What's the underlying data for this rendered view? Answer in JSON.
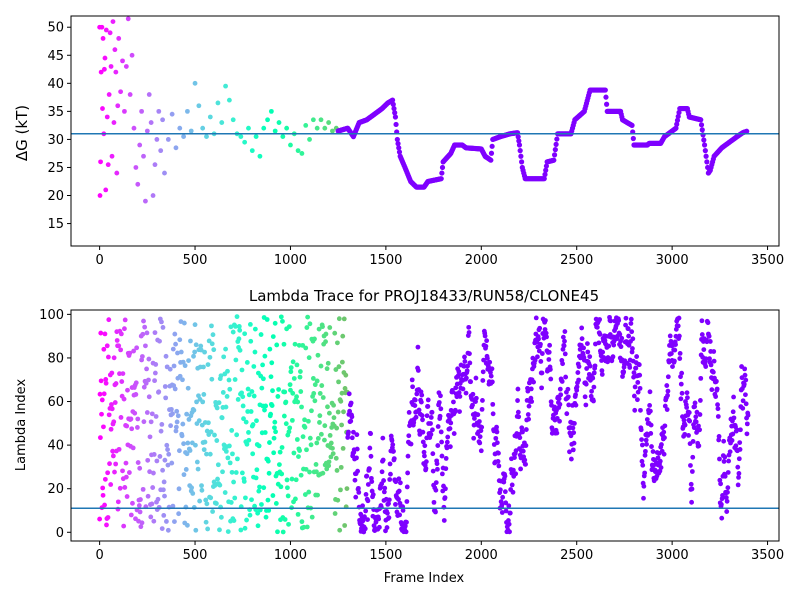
{
  "chart_data": [
    {
      "type": "scatter",
      "title": "",
      "xlabel": "",
      "ylabel": "ΔG (kT)",
      "xlim": [
        -150,
        3560
      ],
      "ylim": [
        11,
        52
      ],
      "xticks": [
        0,
        500,
        1000,
        1500,
        2000,
        2500,
        3000,
        3500
      ],
      "yticks": [
        15,
        20,
        25,
        30,
        35,
        40,
        45,
        50
      ],
      "hline": 31.0,
      "hline_color": "#1f77b4",
      "colormap": "rainbow (red at frame 0 → violet at late frames)",
      "grid": false,
      "early_scatter": [
        {
          "x": 0,
          "y": 50
        },
        {
          "x": 2,
          "y": 20
        },
        {
          "x": 5,
          "y": 26
        },
        {
          "x": 8,
          "y": 42
        },
        {
          "x": 12,
          "y": 50
        },
        {
          "x": 15,
          "y": 35.5
        },
        {
          "x": 18,
          "y": 48
        },
        {
          "x": 22,
          "y": 31
        },
        {
          "x": 25,
          "y": 42.5
        },
        {
          "x": 28,
          "y": 44.5
        },
        {
          "x": 32,
          "y": 21
        },
        {
          "x": 35,
          "y": 49.5
        },
        {
          "x": 40,
          "y": 34
        },
        {
          "x": 45,
          "y": 25.5
        },
        {
          "x": 50,
          "y": 38
        },
        {
          "x": 55,
          "y": 49
        },
        {
          "x": 60,
          "y": 43
        },
        {
          "x": 65,
          "y": 27
        },
        {
          "x": 70,
          "y": 51
        },
        {
          "x": 75,
          "y": 33
        },
        {
          "x": 80,
          "y": 46
        },
        {
          "x": 85,
          "y": 42
        },
        {
          "x": 90,
          "y": 24
        },
        {
          "x": 95,
          "y": 36
        },
        {
          "x": 100,
          "y": 48
        },
        {
          "x": 110,
          "y": 38.5
        },
        {
          "x": 120,
          "y": 44
        },
        {
          "x": 130,
          "y": 35
        },
        {
          "x": 140,
          "y": 43
        },
        {
          "x": 150,
          "y": 51.5
        },
        {
          "x": 160,
          "y": 38
        },
        {
          "x": 170,
          "y": 45
        },
        {
          "x": 180,
          "y": 32
        },
        {
          "x": 190,
          "y": 25
        },
        {
          "x": 200,
          "y": 22
        },
        {
          "x": 210,
          "y": 29
        },
        {
          "x": 220,
          "y": 35
        },
        {
          "x": 230,
          "y": 27
        },
        {
          "x": 240,
          "y": 19
        },
        {
          "x": 250,
          "y": 31.5
        },
        {
          "x": 260,
          "y": 38
        },
        {
          "x": 270,
          "y": 33
        },
        {
          "x": 280,
          "y": 20
        },
        {
          "x": 290,
          "y": 25.5
        },
        {
          "x": 300,
          "y": 30
        },
        {
          "x": 310,
          "y": 35
        },
        {
          "x": 320,
          "y": 28
        },
        {
          "x": 330,
          "y": 33.5
        },
        {
          "x": 340,
          "y": 24
        },
        {
          "x": 360,
          "y": 30
        },
        {
          "x": 380,
          "y": 34.5
        },
        {
          "x": 400,
          "y": 28.5
        },
        {
          "x": 420,
          "y": 32
        },
        {
          "x": 440,
          "y": 30.5
        },
        {
          "x": 460,
          "y": 35
        },
        {
          "x": 480,
          "y": 31.5
        },
        {
          "x": 500,
          "y": 40
        },
        {
          "x": 520,
          "y": 36
        },
        {
          "x": 540,
          "y": 32
        },
        {
          "x": 560,
          "y": 30.5
        },
        {
          "x": 580,
          "y": 34
        },
        {
          "x": 600,
          "y": 31
        },
        {
          "x": 620,
          "y": 36.5
        },
        {
          "x": 640,
          "y": 33
        },
        {
          "x": 660,
          "y": 39.5
        },
        {
          "x": 680,
          "y": 37
        },
        {
          "x": 700,
          "y": 33.5
        },
        {
          "x": 720,
          "y": 31
        },
        {
          "x": 740,
          "y": 30.5
        },
        {
          "x": 760,
          "y": 29.5
        },
        {
          "x": 780,
          "y": 32
        },
        {
          "x": 800,
          "y": 28
        },
        {
          "x": 820,
          "y": 30.5
        },
        {
          "x": 840,
          "y": 27
        },
        {
          "x": 860,
          "y": 32
        },
        {
          "x": 880,
          "y": 33.5
        },
        {
          "x": 900,
          "y": 35
        },
        {
          "x": 920,
          "y": 31.5
        },
        {
          "x": 940,
          "y": 33
        },
        {
          "x": 960,
          "y": 30.5
        },
        {
          "x": 980,
          "y": 32
        },
        {
          "x": 1000,
          "y": 29
        },
        {
          "x": 1020,
          "y": 31
        },
        {
          "x": 1040,
          "y": 28
        },
        {
          "x": 1060,
          "y": 27.5
        },
        {
          "x": 1080,
          "y": 32.5
        },
        {
          "x": 1100,
          "y": 30
        },
        {
          "x": 1120,
          "y": 33.5
        },
        {
          "x": 1140,
          "y": 32
        },
        {
          "x": 1160,
          "y": 33.5
        },
        {
          "x": 1180,
          "y": 32
        },
        {
          "x": 1200,
          "y": 33
        },
        {
          "x": 1220,
          "y": 31.5
        },
        {
          "x": 1240,
          "y": 32
        }
      ],
      "trace": [
        {
          "x": 1250,
          "y": 31.5
        },
        {
          "x": 1300,
          "y": 32
        },
        {
          "x": 1330,
          "y": 30.5
        },
        {
          "x": 1360,
          "y": 33
        },
        {
          "x": 1400,
          "y": 33.5
        },
        {
          "x": 1440,
          "y": 34.5
        },
        {
          "x": 1480,
          "y": 35.5
        },
        {
          "x": 1510,
          "y": 36.5
        },
        {
          "x": 1535,
          "y": 37
        },
        {
          "x": 1550,
          "y": 34
        },
        {
          "x": 1560,
          "y": 30
        },
        {
          "x": 1575,
          "y": 27
        },
        {
          "x": 1600,
          "y": 25
        },
        {
          "x": 1630,
          "y": 22.5
        },
        {
          "x": 1660,
          "y": 21.5
        },
        {
          "x": 1700,
          "y": 21.5
        },
        {
          "x": 1720,
          "y": 22.5
        },
        {
          "x": 1790,
          "y": 23
        },
        {
          "x": 1800,
          "y": 26
        },
        {
          "x": 1840,
          "y": 27.5
        },
        {
          "x": 1860,
          "y": 29
        },
        {
          "x": 1900,
          "y": 29
        },
        {
          "x": 1920,
          "y": 28.5
        },
        {
          "x": 2000,
          "y": 28.3
        },
        {
          "x": 2020,
          "y": 27
        },
        {
          "x": 2050,
          "y": 26.3
        },
        {
          "x": 2060,
          "y": 30
        },
        {
          "x": 2100,
          "y": 30.5
        },
        {
          "x": 2150,
          "y": 31
        },
        {
          "x": 2190,
          "y": 31.2
        },
        {
          "x": 2200,
          "y": 29
        },
        {
          "x": 2215,
          "y": 25
        },
        {
          "x": 2230,
          "y": 23
        },
        {
          "x": 2330,
          "y": 23
        },
        {
          "x": 2345,
          "y": 26
        },
        {
          "x": 2380,
          "y": 26.3
        },
        {
          "x": 2400,
          "y": 31
        },
        {
          "x": 2470,
          "y": 31
        },
        {
          "x": 2490,
          "y": 33.5
        },
        {
          "x": 2540,
          "y": 35
        },
        {
          "x": 2570,
          "y": 38.8
        },
        {
          "x": 2650,
          "y": 38.8
        },
        {
          "x": 2660,
          "y": 35
        },
        {
          "x": 2730,
          "y": 35
        },
        {
          "x": 2740,
          "y": 33.5
        },
        {
          "x": 2790,
          "y": 32.5
        },
        {
          "x": 2800,
          "y": 29
        },
        {
          "x": 2870,
          "y": 29
        },
        {
          "x": 2880,
          "y": 29.3
        },
        {
          "x": 2940,
          "y": 29.3
        },
        {
          "x": 2960,
          "y": 30.5
        },
        {
          "x": 3020,
          "y": 32
        },
        {
          "x": 3040,
          "y": 35.5
        },
        {
          "x": 3080,
          "y": 35.5
        },
        {
          "x": 3090,
          "y": 34
        },
        {
          "x": 3150,
          "y": 33.5
        },
        {
          "x": 3170,
          "y": 29
        },
        {
          "x": 3190,
          "y": 24
        },
        {
          "x": 3200,
          "y": 24.5
        },
        {
          "x": 3220,
          "y": 27
        },
        {
          "x": 3260,
          "y": 28.5
        },
        {
          "x": 3300,
          "y": 29.5
        },
        {
          "x": 3340,
          "y": 30.5
        },
        {
          "x": 3370,
          "y": 31.2
        },
        {
          "x": 3395,
          "y": 31.5
        }
      ]
    },
    {
      "type": "scatter",
      "title": "Lambda Trace for PROJ18433/RUN58/CLONE45",
      "xlabel": "Frame Index",
      "ylabel": "Lambda Index",
      "xlim": [
        -150,
        3560
      ],
      "ylim": [
        -4,
        102
      ],
      "xticks": [
        0,
        500,
        1000,
        1500,
        2000,
        2500,
        3000,
        3500
      ],
      "yticks": [
        0,
        20,
        40,
        60,
        80,
        100
      ],
      "hline": 11,
      "hline_color": "#1f77b4",
      "colormap": "rainbow (red at frame 0 → violet at late frames)",
      "grid": false,
      "n_frames": 3400,
      "index_range": [
        0,
        99
      ]
    }
  ]
}
